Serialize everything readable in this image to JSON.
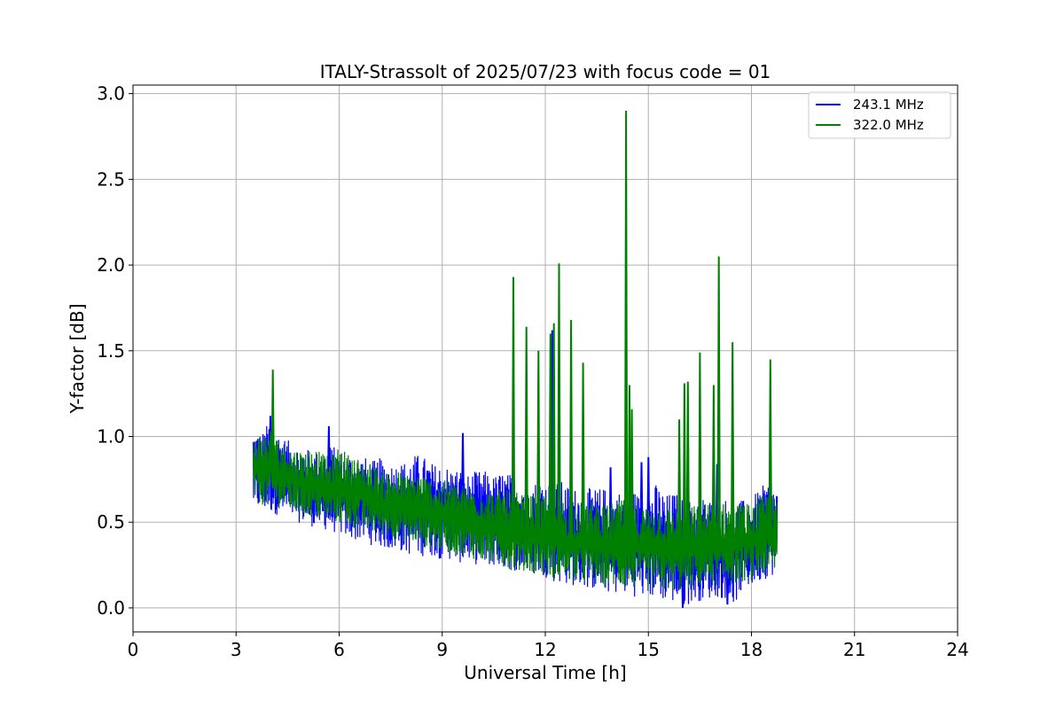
{
  "chart_data": {
    "type": "line",
    "title": "ITALY-Strassolt of 2025/07/23 with focus code = 01",
    "xlabel": "Universal Time [h]",
    "ylabel": "Y-factor [dB]",
    "xlim": [
      0,
      24
    ],
    "ylim": [
      -0.14,
      3.05
    ],
    "xticks": [
      0,
      3,
      6,
      9,
      12,
      15,
      18,
      21,
      24
    ],
    "xtick_labels": [
      "0",
      "3",
      "6",
      "9",
      "12",
      "15",
      "18",
      "21",
      "24"
    ],
    "yticks": [
      0.0,
      0.5,
      1.0,
      1.5,
      2.0,
      2.5,
      3.0
    ],
    "ytick_labels": [
      "0.0",
      "0.5",
      "1.0",
      "1.5",
      "2.0",
      "2.5",
      "3.0"
    ],
    "grid": true,
    "legend": "top-right",
    "series": [
      {
        "name": "243.1 MHz",
        "color": "#0000ff",
        "x": [
          3.5,
          3.75,
          4.0,
          4.25,
          4.5,
          4.75,
          5.0,
          5.25,
          5.5,
          5.75,
          6.0,
          6.25,
          6.5,
          6.75,
          7.0,
          7.25,
          7.5,
          7.75,
          8.0,
          8.25,
          8.5,
          8.75,
          9.0,
          9.25,
          9.5,
          9.75,
          10.0,
          10.25,
          10.5,
          10.75,
          11.0,
          11.25,
          11.5,
          11.75,
          12.0,
          12.25,
          12.5,
          12.75,
          13.0,
          13.25,
          13.5,
          13.75,
          14.0,
          14.25,
          14.5,
          14.75,
          15.0,
          15.25,
          15.5,
          15.75,
          16.0,
          16.25,
          16.5,
          16.75,
          17.0,
          17.25,
          17.5,
          17.75,
          18.0,
          18.25,
          18.5,
          18.75
        ],
        "upper": [
          1.04,
          1.02,
          1.1,
          1.02,
          0.98,
          0.95,
          0.93,
          0.92,
          0.9,
          0.95,
          0.93,
          0.9,
          0.9,
          0.88,
          0.86,
          0.88,
          0.85,
          0.85,
          0.86,
          0.9,
          0.88,
          0.84,
          0.84,
          0.82,
          0.82,
          0.78,
          0.8,
          0.8,
          0.77,
          0.8,
          0.78,
          0.76,
          0.76,
          0.74,
          0.76,
          0.73,
          0.74,
          0.7,
          0.7,
          0.7,
          0.7,
          0.7,
          0.66,
          0.7,
          0.7,
          0.66,
          0.68,
          0.73,
          0.66,
          0.68,
          0.64,
          0.63,
          0.65,
          0.65,
          0.63,
          0.64,
          0.62,
          0.63,
          0.64,
          0.7,
          0.74,
          0.7
        ],
        "lower": [
          0.58,
          0.56,
          0.55,
          0.54,
          0.52,
          0.5,
          0.49,
          0.47,
          0.46,
          0.44,
          0.43,
          0.4,
          0.39,
          0.38,
          0.36,
          0.35,
          0.33,
          0.33,
          0.31,
          0.3,
          0.3,
          0.3,
          0.28,
          0.28,
          0.26,
          0.27,
          0.25,
          0.24,
          0.24,
          0.22,
          0.22,
          0.21,
          0.19,
          0.19,
          0.18,
          0.15,
          0.14,
          0.13,
          0.12,
          0.11,
          0.1,
          0.09,
          0.08,
          0.08,
          0.07,
          0.06,
          0.06,
          0.05,
          0.04,
          0.02,
          0.0,
          0.03,
          0.04,
          0.05,
          0.06,
          0.05,
          0.02,
          0.1,
          0.12,
          0.15,
          0.18,
          0.2
        ],
        "spikes": [
          {
            "x": 4.0,
            "y": 1.12
          },
          {
            "x": 5.7,
            "y": 1.06
          },
          {
            "x": 9.6,
            "y": 1.02
          },
          {
            "x": 12.2,
            "y": 1.62
          },
          {
            "x": 13.9,
            "y": 0.82
          },
          {
            "x": 14.8,
            "y": 0.85
          },
          {
            "x": 15.0,
            "y": 0.88
          },
          {
            "x": 16.0,
            "y": 0.0
          },
          {
            "x": 17.0,
            "y": 0.84
          },
          {
            "x": 17.3,
            "y": 0.02
          }
        ]
      },
      {
        "name": "322.0 MHz",
        "color": "#008000",
        "x": [
          3.5,
          3.75,
          4.0,
          4.25,
          4.5,
          4.75,
          5.0,
          5.25,
          5.5,
          5.75,
          6.0,
          6.25,
          6.5,
          6.75,
          7.0,
          7.25,
          7.5,
          7.75,
          8.0,
          8.25,
          8.5,
          8.75,
          9.0,
          9.25,
          9.5,
          9.75,
          10.0,
          10.25,
          10.5,
          10.75,
          11.0,
          11.25,
          11.5,
          11.75,
          12.0,
          12.25,
          12.5,
          12.75,
          13.0,
          13.25,
          13.5,
          13.75,
          14.0,
          14.25,
          14.5,
          14.75,
          15.0,
          15.25,
          15.5,
          15.75,
          16.0,
          16.25,
          16.5,
          16.75,
          17.0,
          17.25,
          17.5,
          17.75,
          18.0,
          18.25,
          18.5,
          18.75
        ],
        "upper": [
          1.0,
          1.02,
          1.05,
          0.98,
          0.96,
          0.93,
          0.92,
          0.95,
          0.9,
          0.88,
          0.95,
          0.9,
          0.88,
          0.86,
          0.84,
          0.8,
          0.8,
          0.8,
          0.78,
          0.8,
          0.78,
          0.75,
          0.74,
          0.75,
          0.72,
          0.72,
          0.72,
          0.7,
          0.68,
          0.7,
          0.68,
          0.67,
          0.66,
          0.66,
          0.65,
          0.64,
          0.64,
          0.62,
          0.62,
          0.64,
          0.63,
          0.6,
          0.62,
          0.63,
          0.62,
          0.6,
          0.6,
          0.62,
          0.6,
          0.58,
          0.6,
          0.6,
          0.6,
          0.62,
          0.6,
          0.62,
          0.6,
          0.63,
          0.6,
          0.65,
          0.68,
          0.62
        ],
        "lower": [
          0.62,
          0.6,
          0.59,
          0.58,
          0.56,
          0.55,
          0.53,
          0.52,
          0.51,
          0.5,
          0.49,
          0.47,
          0.46,
          0.44,
          0.43,
          0.42,
          0.41,
          0.39,
          0.38,
          0.37,
          0.35,
          0.34,
          0.33,
          0.32,
          0.3,
          0.29,
          0.28,
          0.26,
          0.25,
          0.24,
          0.22,
          0.21,
          0.2,
          0.2,
          0.18,
          0.17,
          0.16,
          0.15,
          0.14,
          0.14,
          0.13,
          0.12,
          0.12,
          0.11,
          0.11,
          0.1,
          0.1,
          0.1,
          0.09,
          0.1,
          0.1,
          0.11,
          0.12,
          0.12,
          0.13,
          0.13,
          0.14,
          0.15,
          0.16,
          0.17,
          0.18,
          0.2
        ],
        "spikes": [
          {
            "x": 4.07,
            "y": 1.39
          },
          {
            "x": 11.07,
            "y": 1.93
          },
          {
            "x": 11.45,
            "y": 1.64
          },
          {
            "x": 11.8,
            "y": 1.5
          },
          {
            "x": 12.15,
            "y": 1.6
          },
          {
            "x": 12.25,
            "y": 1.66
          },
          {
            "x": 12.4,
            "y": 2.01
          },
          {
            "x": 12.75,
            "y": 1.68
          },
          {
            "x": 13.1,
            "y": 1.43
          },
          {
            "x": 14.35,
            "y": 2.9
          },
          {
            "x": 14.45,
            "y": 1.3
          },
          {
            "x": 14.52,
            "y": 1.16
          },
          {
            "x": 15.9,
            "y": 1.1
          },
          {
            "x": 16.05,
            "y": 1.31
          },
          {
            "x": 16.15,
            "y": 1.32
          },
          {
            "x": 16.5,
            "y": 1.49
          },
          {
            "x": 16.9,
            "y": 1.3
          },
          {
            "x": 17.05,
            "y": 2.05
          },
          {
            "x": 17.45,
            "y": 1.55
          },
          {
            "x": 18.55,
            "y": 1.45
          }
        ]
      }
    ]
  }
}
